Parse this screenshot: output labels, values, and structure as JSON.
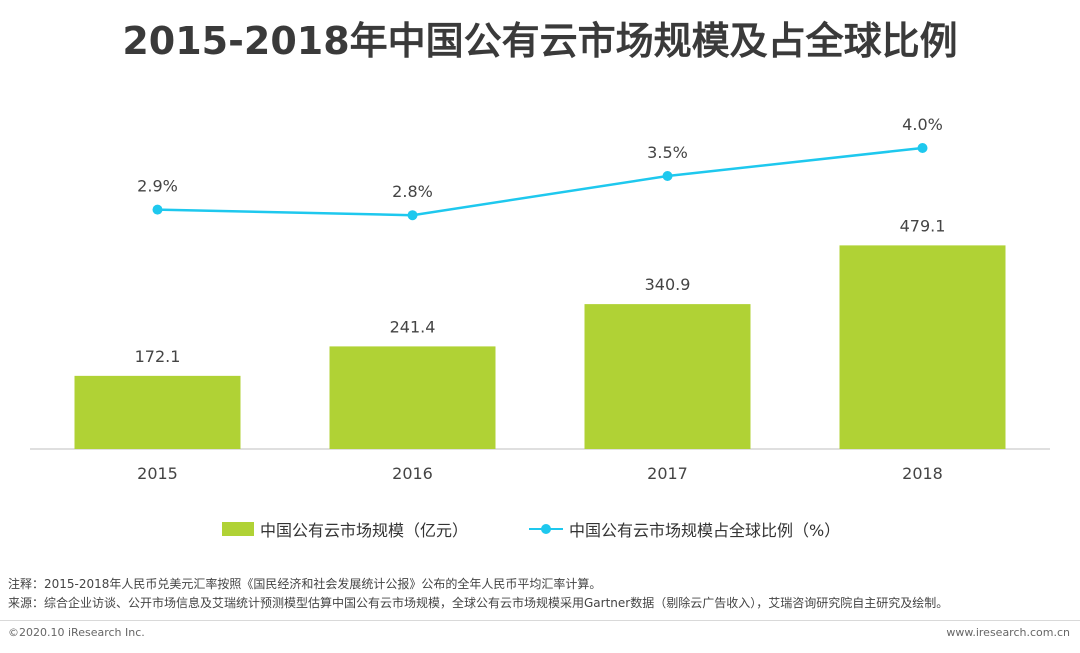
{
  "page": {
    "title": "2015-2018年中国公有云市场规模及占全球比例",
    "note": "注释：2015-2018年人民币兑美元汇率按照《国民经济和社会发展统计公报》公布的全年人民币平均汇率计算。",
    "source": "来源：综合企业访谈、公开市场信息及艾瑞统计预测模型估算中国公有云市场规模，全球公有云市场规模采用Gartner数据（剔除云广告收入），艾瑞咨询研究院自主研究及绘制。",
    "copyright": "©2020.10 iResearch Inc.",
    "website": "www.iresearch.com.cn"
  },
  "colors": {
    "bar": "#b0d235",
    "line": "#1ec8ee",
    "axis": "#bfbfbf"
  },
  "chart_data": {
    "type": "bar+line",
    "title": "2015-2018年中国公有云市场规模及占全球比例",
    "categories": [
      "2015",
      "2016",
      "2017",
      "2018"
    ],
    "series": [
      {
        "name": "中国公有云市场规模（亿元）",
        "type": "bar",
        "values": [
          172.1,
          241.4,
          340.9,
          479.1
        ],
        "labels": [
          "172.1",
          "241.4",
          "340.9",
          "479.1"
        ]
      },
      {
        "name": "中国公有云市场规模占全球比例（%）",
        "type": "line",
        "values": [
          2.9,
          2.8,
          3.5,
          4.0
        ],
        "labels": [
          "2.9%",
          "2.8%",
          "3.5%",
          "4.0%"
        ]
      }
    ],
    "bar_axis_range": [
      0,
      600
    ],
    "line_axis_range": [
      -2.0,
      4.6
    ],
    "legend_position": "bottom-center",
    "grid": false
  }
}
